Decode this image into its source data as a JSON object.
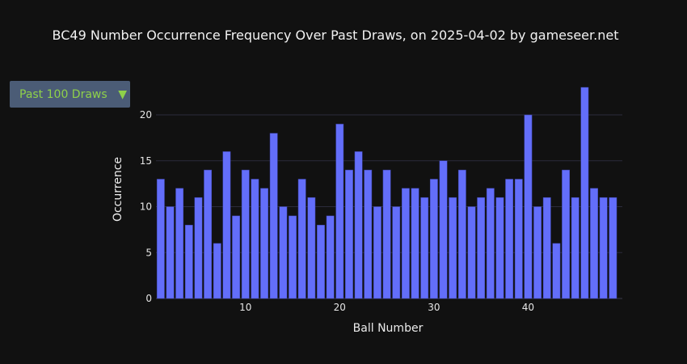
{
  "title": "BC49 Number Occurrence Frequency Over Past Draws, on 2025-04-02 by gameseer.net",
  "dropdown": {
    "label": "Past 100 Draws",
    "arrow": "▼"
  },
  "colors": {
    "background": "#111111",
    "bar_fill": "#636efa",
    "grid": "#2b2b3b",
    "dropdown_bg": "#4b5c76",
    "dropdown_text": "#8fd14a"
  },
  "chart_data": {
    "type": "bar",
    "xlabel": "Ball Number",
    "ylabel": "Occurrence",
    "x": [
      1,
      2,
      3,
      4,
      5,
      6,
      7,
      8,
      9,
      10,
      11,
      12,
      13,
      14,
      15,
      16,
      17,
      18,
      19,
      20,
      21,
      22,
      23,
      24,
      25,
      26,
      27,
      28,
      29,
      30,
      31,
      32,
      33,
      34,
      35,
      36,
      37,
      38,
      39,
      40,
      41,
      42,
      43,
      44,
      45,
      46,
      47,
      48,
      49
    ],
    "values": [
      13,
      10,
      12,
      8,
      11,
      14,
      6,
      16,
      9,
      14,
      13,
      12,
      18,
      10,
      9,
      13,
      11,
      8,
      9,
      19,
      14,
      16,
      14,
      10,
      14,
      10,
      12,
      12,
      11,
      13,
      15,
      11,
      14,
      10,
      11,
      12,
      11,
      13,
      13,
      20,
      10,
      11,
      6,
      14,
      11,
      23,
      12,
      11,
      11
    ],
    "xticks": [
      10,
      20,
      30,
      40
    ],
    "yticks": [
      0,
      5,
      10,
      15,
      20
    ],
    "xlim": [
      0.5,
      50
    ],
    "ylim": [
      0,
      23
    ],
    "grid": true
  }
}
